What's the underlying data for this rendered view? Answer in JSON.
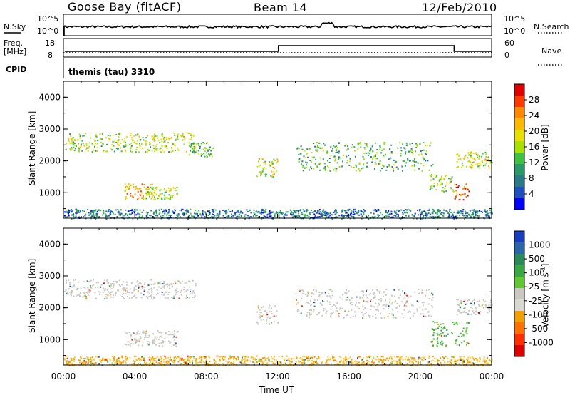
{
  "header": {
    "station": "Goose Bay (fitACF)",
    "beam": "Beam 14",
    "date": "12/Feb/2010"
  },
  "noise_panel": {
    "left_label": "N.Sky",
    "right_label": "N.Search",
    "left_ticks": [
      "10^5",
      "10^0"
    ],
    "right_ticks": [
      "10^5",
      "10^0"
    ]
  },
  "freq_panel": {
    "left_label_1": "Freq.",
    "left_label_2": "[MHz]",
    "right_label": "Nave",
    "left_ticks": [
      "18",
      "8"
    ],
    "right_ticks": [
      "60",
      "0"
    ]
  },
  "cpid": {
    "label": "CPID",
    "value": "themis (tau) 3310"
  },
  "chart_data": [
    {
      "type": "heatmap",
      "name": "power",
      "ylabel": "Slant Range [km]",
      "yticks": [
        "4000",
        "3000",
        "2000",
        "1000"
      ],
      "colorbar_label": "Power [dB]",
      "colorbar_ticks": [
        "28",
        "24",
        "20",
        "16",
        "12",
        "8",
        "4"
      ],
      "colorbar_colors": [
        "#e00000",
        "#ff3a00",
        "#ff8800",
        "#ffb800",
        "#e8e000",
        "#a8e000",
        "#40c040",
        "#2a9a68",
        "#2a7a8a",
        "#2050c0",
        "#0000ff"
      ],
      "features": [
        {
          "x0": 0.1,
          "x1": 7.4,
          "y0": 2300,
          "y1": 2900,
          "level": 16
        },
        {
          "x0": 7.0,
          "x1": 8.4,
          "y0": 2150,
          "y1": 2600,
          "level": 12
        },
        {
          "x0": 10.8,
          "x1": 12.0,
          "y0": 1500,
          "y1": 2100,
          "level": 18
        },
        {
          "x0": 13.0,
          "x1": 20.7,
          "y0": 1700,
          "y1": 2600,
          "level": 12
        },
        {
          "x0": 22.0,
          "x1": 24.0,
          "y0": 1800,
          "y1": 2300,
          "level": 18
        },
        {
          "x0": 3.4,
          "x1": 5.0,
          "y0": 800,
          "y1": 1300,
          "level": 22
        },
        {
          "x0": 4.6,
          "x1": 6.4,
          "y0": 800,
          "y1": 1200,
          "level": 16
        },
        {
          "x0": 20.5,
          "x1": 21.9,
          "y0": 1050,
          "y1": 1600,
          "level": 16
        },
        {
          "x0": 21.9,
          "x1": 22.7,
          "y0": 800,
          "y1": 1300,
          "level": 26
        },
        {
          "x0": 0.0,
          "x1": 24.0,
          "y0": 200,
          "y1": 500,
          "level": 8
        }
      ]
    },
    {
      "type": "heatmap",
      "name": "velocity",
      "ylabel": "Slant Range [km]",
      "xlabel": "Time UT",
      "xticks": [
        "00:00",
        "04:00",
        "08:00",
        "12:00",
        "16:00",
        "20:00",
        "00:00"
      ],
      "yticks": [
        "4000",
        "3000",
        "2000",
        "1000"
      ],
      "colorbar_label": "Velocity [m s^-1]",
      "colorbar_label_base": "Velocity [m s",
      "colorbar_label_exp": "-1",
      "colorbar_label_end": "]",
      "colorbar_ticks": [
        "1000",
        "500",
        "100",
        "25",
        "-25",
        "-100",
        "-500",
        "-1000"
      ],
      "colorbar_colors": [
        "#1a3ec0",
        "#2a66a8",
        "#2a8a5a",
        "#3aa840",
        "#60c830",
        "#c8c8c0",
        "#d8d8d0",
        "#f0a000",
        "#ff7000",
        "#ff3000",
        "#e00000"
      ],
      "features": [
        {
          "x0": 0.1,
          "x1": 7.4,
          "y0": 2300,
          "y1": 2900,
          "vel": 0
        },
        {
          "x0": 10.8,
          "x1": 12.0,
          "y0": 1500,
          "y1": 2100,
          "vel": 0
        },
        {
          "x0": 13.0,
          "x1": 20.7,
          "y0": 1700,
          "y1": 2600,
          "vel": 0
        },
        {
          "x0": 22.0,
          "x1": 24.0,
          "y0": 1800,
          "y1": 2300,
          "vel": 0
        },
        {
          "x0": 3.4,
          "x1": 6.4,
          "y0": 800,
          "y1": 1300,
          "vel": 0
        },
        {
          "x0": 20.5,
          "x1": 22.7,
          "y0": 800,
          "y1": 1600,
          "vel": 150
        },
        {
          "x0": 0.0,
          "x1": 24.0,
          "y0": 200,
          "y1": 500,
          "vel": -300
        }
      ]
    }
  ]
}
